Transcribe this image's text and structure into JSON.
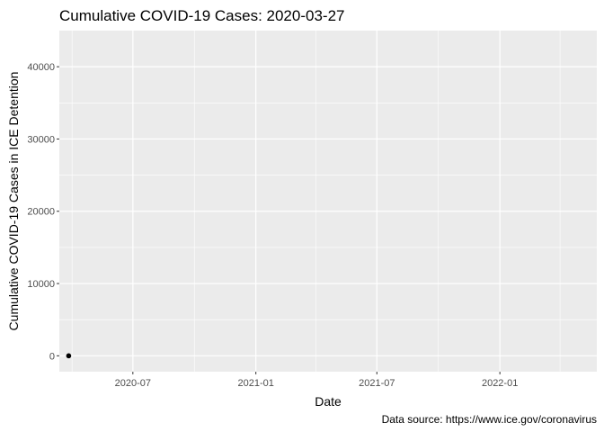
{
  "chart_data": {
    "type": "scatter",
    "title": "Cumulative COVID-19 Cases: 2020-03-27",
    "xlabel": "Date",
    "ylabel": "Cumulative COVID-19 Cases in ICE Detention",
    "caption": "Data source: https://www.ice.gov/coronavirus",
    "x_type": "date",
    "xlim": [
      "2020-03-13",
      "2022-05-26"
    ],
    "ylim": [
      -2200,
      45000
    ],
    "x_major_ticks": [
      "2020-07-01",
      "2021-01-01",
      "2021-07-01",
      "2022-01-01"
    ],
    "x_minor_ticks": [
      "2020-04-01",
      "2020-10-01",
      "2021-04-01",
      "2021-10-01",
      "2022-04-01"
    ],
    "x_tick_labels": [
      "2020-07",
      "2021-01",
      "2021-07",
      "2022-01"
    ],
    "y_major_ticks": [
      0,
      10000,
      20000,
      30000,
      40000
    ],
    "y_minor_ticks": [
      5000,
      15000,
      25000,
      35000
    ],
    "y_tick_labels": [
      "0",
      "10000",
      "20000",
      "30000",
      "40000"
    ],
    "grid": true,
    "legend": "none",
    "colors": {
      "panel": "#ebebeb",
      "grid": "#ffffff",
      "point": "#000000",
      "tick_text": "#4d4d4d",
      "tick_mark": "#333333"
    },
    "points": [
      {
        "x": "2020-03-27",
        "y": 0
      }
    ]
  }
}
